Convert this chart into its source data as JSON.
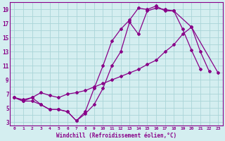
{
  "line1_x": [
    0,
    1,
    2,
    3,
    4,
    5,
    6,
    7,
    8,
    9,
    10,
    11,
    12,
    13,
    14,
    15,
    16,
    17,
    18,
    19,
    20,
    21
  ],
  "line1_y": [
    6.5,
    6.0,
    6.0,
    5.5,
    4.8,
    4.8,
    4.5,
    3.2,
    4.2,
    5.5,
    7.8,
    11.0,
    13.0,
    17.2,
    15.5,
    18.8,
    19.2,
    19.0,
    18.8,
    16.2,
    13.2,
    10.5
  ],
  "line2_x": [
    0,
    1,
    2,
    3,
    4,
    5,
    6,
    7,
    8,
    9,
    10,
    11,
    12,
    13,
    14,
    15,
    16,
    17,
    18,
    19,
    20,
    23
  ],
  "line2_y": [
    6.5,
    6.2,
    6.5,
    7.2,
    6.8,
    6.5,
    7.0,
    7.2,
    7.5,
    8.0,
    8.5,
    9.0,
    9.5,
    10.0,
    10.5,
    11.2,
    11.8,
    13.0,
    14.0,
    15.5,
    16.5,
    10.0
  ],
  "line3_x": [
    0,
    1,
    2,
    3,
    4,
    5,
    6,
    7,
    8,
    9,
    10,
    11,
    12,
    13,
    14,
    15,
    16,
    17,
    18,
    20,
    21,
    22
  ],
  "line3_y": [
    6.5,
    6.0,
    6.5,
    5.5,
    4.8,
    4.8,
    4.5,
    3.2,
    4.5,
    7.8,
    11.0,
    14.5,
    16.2,
    17.5,
    19.2,
    19.0,
    19.5,
    18.8,
    18.8,
    16.5,
    13.0,
    10.2
  ],
  "color": "#880088",
  "bg_color": "#d4eef0",
  "grid_color": "#aad4d8",
  "xlabel": "Windchill (Refroidissement éolien,°C)",
  "xlim": [
    -0.5,
    23.5
  ],
  "ylim": [
    2.5,
    20.0
  ],
  "xticks": [
    0,
    1,
    2,
    3,
    4,
    5,
    6,
    7,
    8,
    9,
    10,
    11,
    12,
    13,
    14,
    15,
    16,
    17,
    18,
    19,
    20,
    21,
    22,
    23
  ],
  "yticks": [
    3,
    5,
    7,
    9,
    11,
    13,
    15,
    17,
    19
  ],
  "marker": "D",
  "markersize": 2.0,
  "linewidth": 0.9
}
